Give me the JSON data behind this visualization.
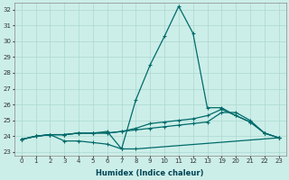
{
  "xlabel": "Humidex (Indice chaleur)",
  "bg_color": "#cceee8",
  "grid_color": "#aad8d0",
  "line_color": "#006b6b",
  "ylim": [
    22.8,
    32.4
  ],
  "yticks": [
    23,
    24,
    25,
    26,
    27,
    28,
    29,
    30,
    31,
    32
  ],
  "x_labels": [
    "0",
    "1",
    "2",
    "3",
    "4",
    "5",
    "6",
    "7",
    "8",
    "9",
    "10",
    "11",
    "12",
    "13",
    "19",
    "20",
    "21",
    "22",
    "23"
  ],
  "x_pos_map": {
    "0": 0,
    "1": 1,
    "2": 2,
    "3": 3,
    "4": 4,
    "5": 5,
    "6": 6,
    "7": 7,
    "8": 8,
    "9": 9,
    "10": 10,
    "11": 11,
    "12": 12,
    "13": 13,
    "19": 14,
    "20": 15,
    "21": 16,
    "22": 17,
    "23": 18
  },
  "xlim": [
    -0.5,
    18.5
  ],
  "series": [
    {
      "xidx": [
        0,
        1,
        2,
        3,
        4,
        5,
        6,
        7,
        8,
        18
      ],
      "y": [
        23.8,
        24.0,
        24.1,
        23.7,
        23.7,
        23.6,
        23.5,
        23.2,
        23.2,
        23.9
      ]
    },
    {
      "xidx": [
        0,
        1,
        2,
        3,
        4,
        5,
        6,
        7,
        8,
        9,
        10,
        11,
        12,
        13,
        14,
        15,
        16,
        17,
        18
      ],
      "y": [
        23.8,
        24.0,
        24.1,
        24.1,
        24.2,
        24.2,
        24.2,
        24.3,
        24.4,
        24.5,
        24.6,
        24.7,
        24.8,
        24.9,
        25.5,
        25.5,
        25.0,
        24.2,
        23.9
      ]
    },
    {
      "xidx": [
        0,
        1,
        2,
        3,
        4,
        5,
        6,
        7,
        8,
        9,
        10,
        11,
        12,
        13,
        14,
        15,
        16,
        17,
        18
      ],
      "y": [
        23.8,
        24.0,
        24.1,
        24.1,
        24.2,
        24.2,
        24.2,
        24.3,
        24.5,
        24.8,
        24.9,
        25.0,
        25.1,
        25.3,
        25.7,
        25.3,
        24.9,
        24.2,
        23.9
      ]
    },
    {
      "xidx": [
        0,
        1,
        2,
        3,
        4,
        5,
        6,
        7,
        8,
        9,
        10,
        11,
        12,
        13,
        14,
        15,
        16,
        17,
        18
      ],
      "y": [
        23.8,
        24.0,
        24.1,
        24.1,
        24.2,
        24.2,
        24.3,
        23.2,
        26.3,
        28.5,
        30.3,
        32.2,
        30.5,
        25.8,
        25.8,
        25.3,
        24.9,
        24.2,
        23.9
      ]
    }
  ]
}
